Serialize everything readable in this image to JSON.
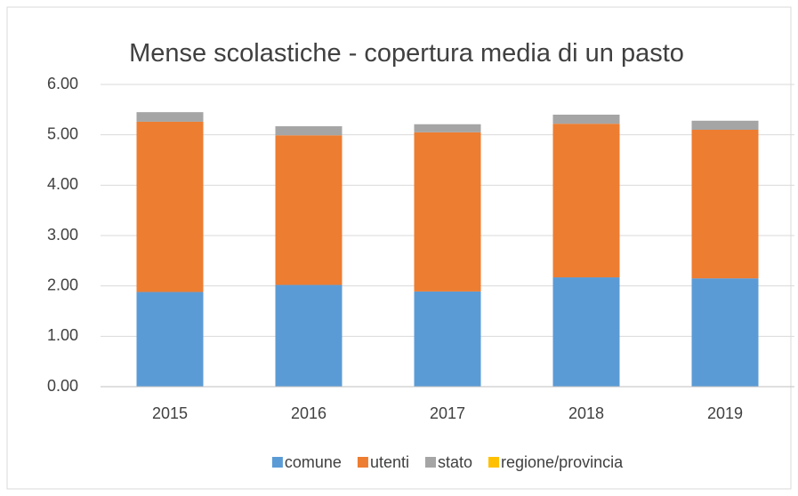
{
  "chart_data": {
    "type": "stacked_bar",
    "title": "Mense scolastiche - copertura media di un pasto",
    "categories": [
      "2015",
      "2016",
      "2017",
      "2018",
      "2019"
    ],
    "series": [
      {
        "name": "comune",
        "color": "#5b9bd5",
        "values": [
          1.88,
          2.02,
          1.89,
          2.17,
          2.15
        ]
      },
      {
        "name": "utenti",
        "color": "#ed7d31",
        "values": [
          3.38,
          2.97,
          3.16,
          3.05,
          2.95
        ]
      },
      {
        "name": "stato",
        "color": "#a5a5a5",
        "values": [
          0.19,
          0.18,
          0.16,
          0.18,
          0.18
        ]
      },
      {
        "name": "regione/provincia",
        "color": "#ffc000",
        "values": [
          0,
          0,
          0,
          0,
          0
        ]
      }
    ],
    "ylim": [
      0,
      6
    ],
    "yticks": [
      {
        "value": 0,
        "label": "0.00"
      },
      {
        "value": 1,
        "label": "1.00"
      },
      {
        "value": 2,
        "label": "2.00"
      },
      {
        "value": 3,
        "label": "3.00"
      },
      {
        "value": 4,
        "label": "4.00"
      },
      {
        "value": 5,
        "label": "5.00"
      },
      {
        "value": 6,
        "label": "6.00"
      }
    ],
    "grid": true,
    "legend": "bottom"
  }
}
